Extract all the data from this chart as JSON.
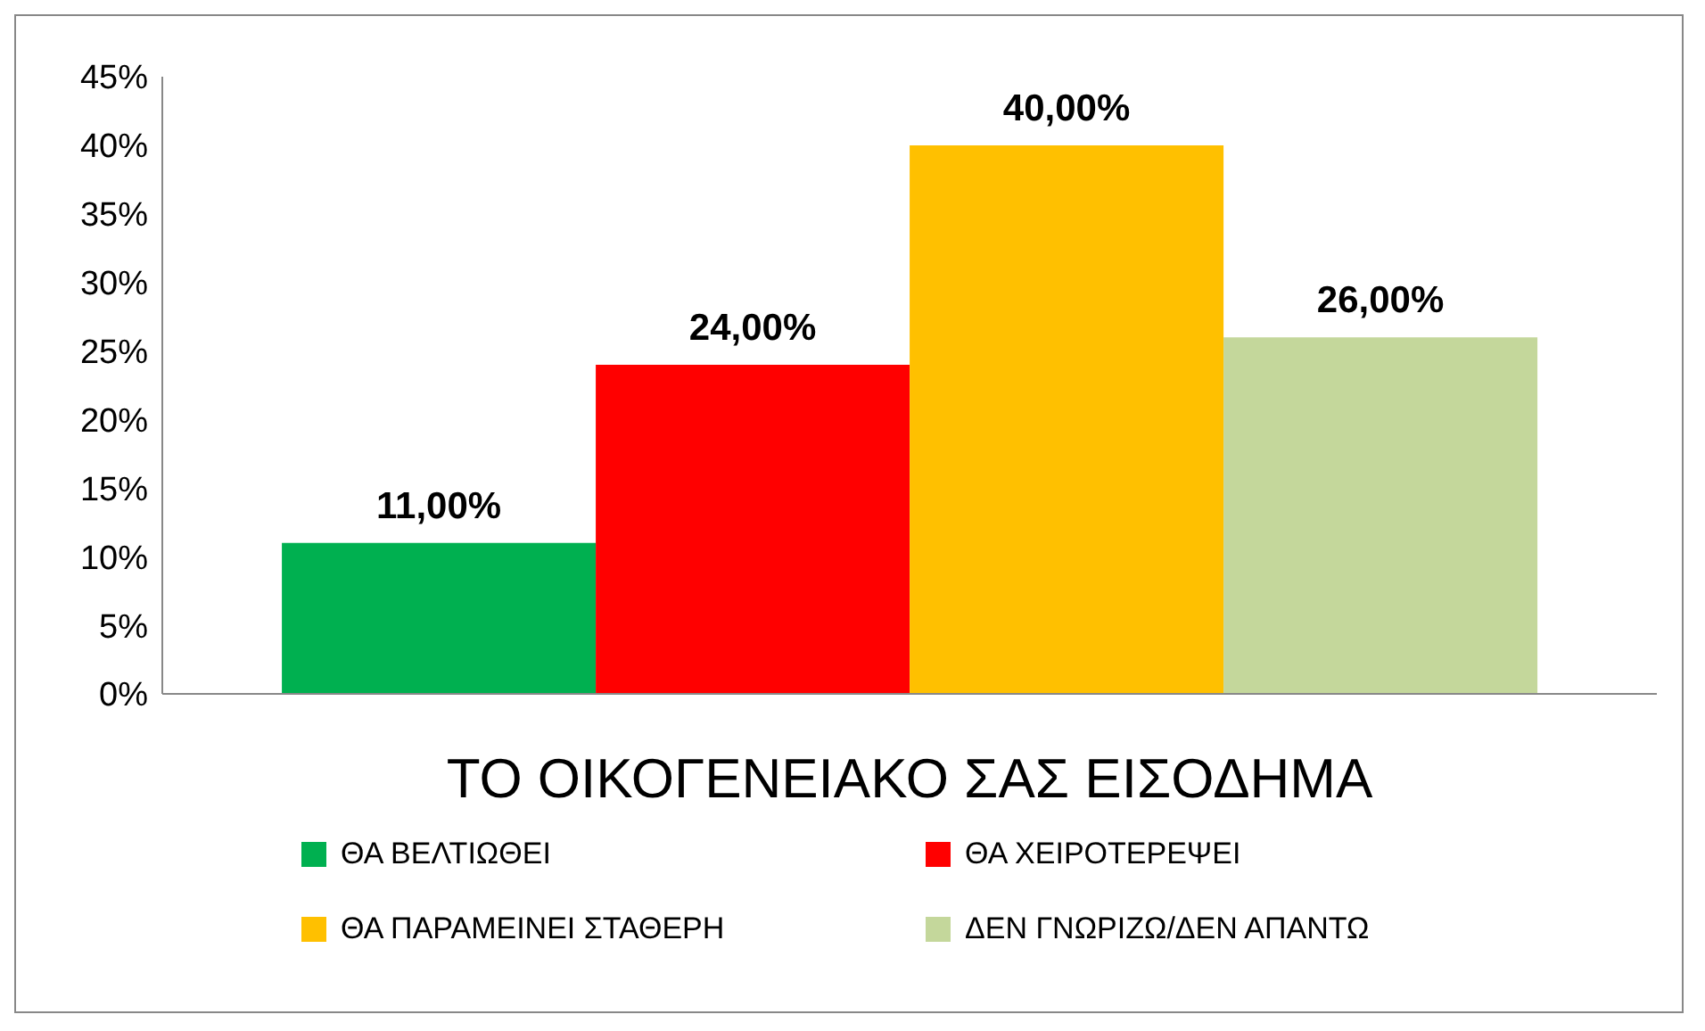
{
  "chart_data": {
    "type": "bar",
    "categories": [
      "ΤΟ ΟΙΚΟΓΕΝΕΙΑΚΟ ΣΑΣ ΕΙΣΟΔΗΜΑ"
    ],
    "series": [
      {
        "name": "ΘΑ ΒΕΛΤΙΩΘΕΙ",
        "color": "#00b050",
        "values": [
          11
        ],
        "value_labels": [
          "11,00%"
        ]
      },
      {
        "name": "ΘΑ ΧΕΙΡΟΤΕΡΕΨΕΙ",
        "color": "#ff0000",
        "values": [
          24
        ],
        "value_labels": [
          "24,00%"
        ]
      },
      {
        "name": "ΘΑ ΠΑΡΑΜΕΙΝΕΙ ΣΤΑΘΕΡΗ",
        "color": "#ffc000",
        "values": [
          40
        ],
        "value_labels": [
          "40,00%"
        ]
      },
      {
        "name": "ΔΕΝ ΓΝΩΡΙΖΩ/ΔΕΝ ΑΠΑΝΤΩ",
        "color": "#c4d79b",
        "values": [
          26
        ],
        "value_labels": [
          "26,00%"
        ]
      }
    ],
    "ylim": [
      0,
      45
    ],
    "yticks": [
      {
        "value": 0,
        "label": "0%"
      },
      {
        "value": 5,
        "label": "5%"
      },
      {
        "value": 10,
        "label": "10%"
      },
      {
        "value": 15,
        "label": "15%"
      },
      {
        "value": 20,
        "label": "20%"
      },
      {
        "value": 25,
        "label": "25%"
      },
      {
        "value": 30,
        "label": "30%"
      },
      {
        "value": 35,
        "label": "35%"
      },
      {
        "value": 40,
        "label": "40%"
      },
      {
        "value": 45,
        "label": "45%"
      }
    ],
    "grid": false,
    "legend": "bottom"
  }
}
